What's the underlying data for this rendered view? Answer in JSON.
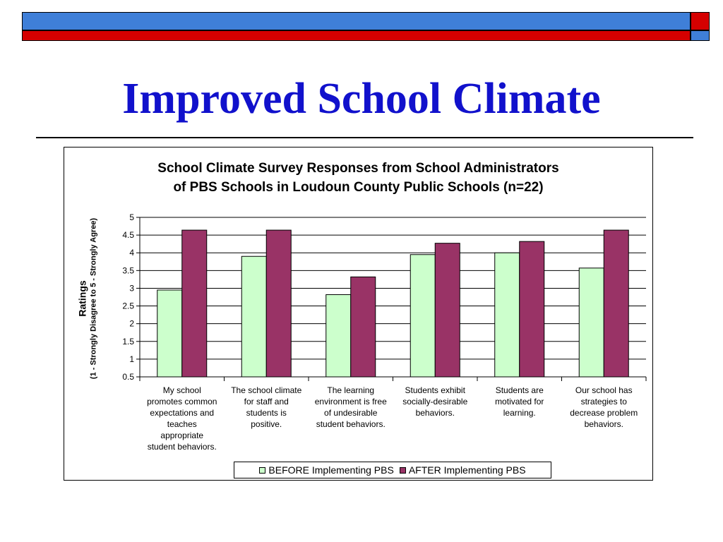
{
  "slide": {
    "title": "Improved School Climate",
    "colors": {
      "band_blue": "#3f7fd8",
      "band_red": "#d50000",
      "title_blue": "#1111cc"
    }
  },
  "chart_data": {
    "type": "bar",
    "title": "School Climate Survey Responses from School Administrators\nof PBS Schools in Loudoun County Public Schools (n=22)",
    "ylabel": "Ratings",
    "ylabel_sub": "(1 - Strongly Disagree to 5 - Strongly Agree)",
    "xlabel": "",
    "ylim": [
      0.5,
      5
    ],
    "yticks": [
      "5",
      "4.5",
      "4",
      "3.5",
      "3",
      "2.5",
      "2",
      "1.5",
      "1",
      "0.5"
    ],
    "grid": true,
    "legend_position": "bottom",
    "categories": [
      "My school promotes common expectations and teaches appropriate student behaviors.",
      "The school climate for staff and students is positive.",
      "The learning environment is free of undesirable student behaviors.",
      "Students exhibit socially-desirable behaviors.",
      "Students are motivated for learning.",
      "Our school has strategies to decrease problem behaviors."
    ],
    "category_lines": [
      [
        "My school",
        "promotes common",
        "expectations and",
        "teaches",
        "appropriate",
        "student behaviors."
      ],
      [
        "The school climate",
        "for staff and",
        "students is",
        "positive."
      ],
      [
        "The learning",
        "environment is free",
        "of undesirable",
        "student behaviors."
      ],
      [
        "Students exhibit",
        "socially-desirable",
        "behaviors."
      ],
      [
        "Students are",
        "motivated for",
        "learning."
      ],
      [
        "Our school has",
        "strategies to",
        "decrease problem",
        "behaviors."
      ]
    ],
    "series": [
      {
        "name": "BEFORE Implementing PBS",
        "color": "#ccffcc",
        "values": [
          2.95,
          3.9,
          2.82,
          3.95,
          4.0,
          3.57
        ]
      },
      {
        "name": "AFTER Implementing PBS",
        "color": "#993366",
        "values": [
          4.64,
          4.64,
          3.32,
          4.27,
          4.32,
          4.64
        ]
      }
    ]
  }
}
